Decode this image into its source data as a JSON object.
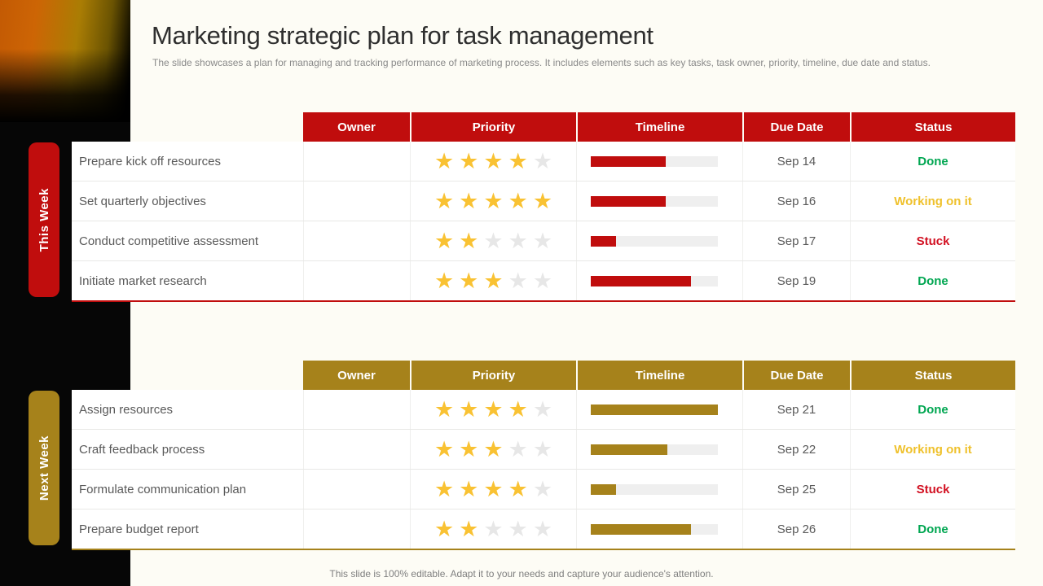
{
  "slide": {
    "title": "Marketing strategic plan for task management",
    "subtitle": "The slide showcases a plan for managing and tracking performance of marketing process. It includes elements such as key tasks, task owner, priority, timeline, due date and status.",
    "footer": "This slide is 100% editable. Adapt it to your needs and capture your audience's attention."
  },
  "colors": {
    "red_theme": "#C00D0D",
    "gold_theme": "#A6821B",
    "status_done": "#00A651",
    "status_working": "#EFC12C",
    "status_stuck": "#D21021",
    "star_filled": "#F9C233",
    "star_empty": "#E7E7E7",
    "bar_track": "#EFEFEF"
  },
  "columns": [
    "Owner",
    "Priority",
    "Timeline",
    "Due Date",
    "Status"
  ],
  "sections": [
    {
      "label": "This Week",
      "theme": "red",
      "rows": [
        {
          "task": "Prepare kick off resources",
          "owner": "",
          "priority": 4,
          "priority_max": 5,
          "timeline_pct": 59,
          "due_date": "Sep 14",
          "status": "Done",
          "status_type": "done"
        },
        {
          "task": "Set quarterly objectives",
          "owner": "",
          "priority": 5,
          "priority_max": 5,
          "timeline_pct": 59,
          "due_date": "Sep 16",
          "status": "Working on it",
          "status_type": "working"
        },
        {
          "task": "Conduct competitive assessment",
          "owner": "",
          "priority": 2,
          "priority_max": 5,
          "timeline_pct": 20,
          "due_date": "Sep 17",
          "status": "Stuck",
          "status_type": "stuck"
        },
        {
          "task": "Initiate market research",
          "owner": "",
          "priority": 3,
          "priority_max": 5,
          "timeline_pct": 79,
          "due_date": "Sep 19",
          "status": "Done",
          "status_type": "done"
        }
      ]
    },
    {
      "label": "Next Week",
      "theme": "gold",
      "rows": [
        {
          "task": "Assign resources",
          "owner": "",
          "priority": 4,
          "priority_max": 5,
          "timeline_pct": 100,
          "due_date": "Sep 21",
          "status": "Done",
          "status_type": "done"
        },
        {
          "task": "Craft feedback process",
          "owner": "",
          "priority": 3,
          "priority_max": 5,
          "timeline_pct": 60,
          "due_date": "Sep 22",
          "status": "Working on it",
          "status_type": "working"
        },
        {
          "task": "Formulate communication plan",
          "owner": "",
          "priority": 4,
          "priority_max": 5,
          "timeline_pct": 20,
          "due_date": "Sep 25",
          "status": "Stuck",
          "status_type": "stuck"
        },
        {
          "task": "Prepare budget report",
          "owner": "",
          "priority": 2,
          "priority_max": 5,
          "timeline_pct": 79,
          "due_date": "Sep 26",
          "status": "Done",
          "status_type": "done"
        }
      ]
    }
  ]
}
